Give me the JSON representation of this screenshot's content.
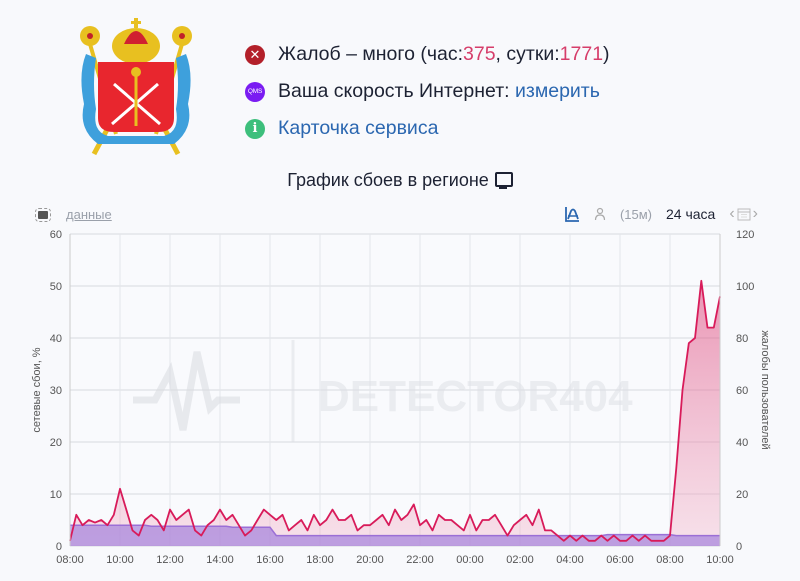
{
  "header": {
    "status_items": [
      {
        "icon": "error-x-icon",
        "text_before": "Жалоб – много (час: ",
        "hour_count": "375",
        "text_mid": ", сутки: ",
        "day_count": "1771",
        "text_after": ")"
      },
      {
        "icon": "qms-icon",
        "icon_label": "QMS",
        "text": "Ваша скорость Интернет: ",
        "link": "измерить"
      },
      {
        "icon": "info-icon",
        "icon_label": "i",
        "link": "Карточка сервиса"
      }
    ]
  },
  "chart_header": {
    "title": "График сбоев в регионе",
    "data_link": "данные",
    "interval": "(15м)",
    "range": "24 часа"
  },
  "watermark": "DETECTOR404",
  "colors": {
    "complaints": "#d81b5a",
    "network": "#9b6fd6",
    "accent": "#2b67b0",
    "error": "#b3202a",
    "qms": "#7a1cf2",
    "info": "#3dbf7c"
  },
  "chart_data": {
    "type": "area",
    "title": "График сбоев в регионе",
    "xlabel": "",
    "ylabel": "сетевые сбои, %",
    "ylabel_right": "жалобы пользователей",
    "ylim": [
      0,
      60
    ],
    "ylim_right": [
      0,
      120
    ],
    "yticks": [
      0,
      10,
      20,
      30,
      40,
      50,
      60
    ],
    "yticks_right": [
      0,
      20,
      40,
      60,
      80,
      100,
      120
    ],
    "xticks": [
      "08:00",
      "10:00",
      "12:00",
      "14:00",
      "16:00",
      "18:00",
      "20:00",
      "22:00",
      "00:00",
      "02:00",
      "04:00",
      "06:00",
      "08:00",
      "10:00"
    ],
    "grid": true,
    "legend": "none",
    "x_hours": [
      0,
      0.25,
      0.5,
      0.75,
      1,
      1.25,
      1.5,
      1.75,
      2,
      2.25,
      2.5,
      2.75,
      3,
      3.25,
      3.5,
      3.75,
      4,
      4.25,
      4.5,
      4.75,
      5,
      5.25,
      5.5,
      5.75,
      6,
      6.25,
      6.5,
      6.75,
      7,
      7.25,
      7.5,
      7.75,
      8,
      8.25,
      8.5,
      8.75,
      9,
      9.25,
      9.5,
      9.75,
      10,
      10.25,
      10.5,
      10.75,
      11,
      11.25,
      11.5,
      11.75,
      12,
      12.25,
      12.5,
      12.75,
      13,
      13.25,
      13.5,
      13.75,
      14,
      14.25,
      14.5,
      14.75,
      15,
      15.25,
      15.5,
      15.75,
      16,
      16.25,
      16.5,
      16.75,
      17,
      17.25,
      17.5,
      17.75,
      18,
      18.25,
      18.5,
      18.75,
      19,
      19.25,
      19.5,
      19.75,
      20,
      20.25,
      20.5,
      20.75,
      21,
      21.25,
      21.5,
      21.75,
      22,
      22.25,
      22.5,
      22.75,
      23,
      23.25,
      23.5,
      23.75,
      24,
      24.25,
      24.5,
      24.75,
      25,
      25.25,
      25.5,
      25.75,
      26
    ],
    "series": [
      {
        "name": "жалобы пользователей",
        "axis": "right",
        "values": [
          2,
          12,
          8,
          10,
          9,
          10,
          8,
          12,
          22,
          14,
          6,
          4,
          10,
          12,
          10,
          6,
          14,
          10,
          12,
          14,
          6,
          4,
          8,
          10,
          14,
          10,
          12,
          8,
          4,
          6,
          10,
          14,
          12,
          10,
          12,
          6,
          8,
          10,
          6,
          12,
          8,
          10,
          14,
          10,
          10,
          12,
          6,
          8,
          8,
          10,
          12,
          8,
          14,
          10,
          12,
          16,
          8,
          10,
          6,
          12,
          10,
          10,
          8,
          6,
          12,
          6,
          10,
          10,
          12,
          8,
          4,
          8,
          10,
          12,
          8,
          14,
          6,
          6,
          4,
          2,
          4,
          2,
          4,
          2,
          2,
          4,
          2,
          4,
          2,
          2,
          4,
          2,
          4,
          2,
          2,
          2,
          4,
          30,
          60,
          78,
          80,
          102,
          84,
          84,
          96,
          86,
          104,
          92
        ]
      },
      {
        "name": "сетевые сбои, %",
        "axis": "left",
        "values": [
          4,
          4,
          4,
          4,
          4,
          4,
          4,
          4,
          4,
          4,
          4,
          4,
          4,
          3.8,
          3.8,
          3.8,
          3.8,
          3.8,
          3.8,
          3.8,
          3.8,
          3.8,
          3.8,
          3.8,
          3.8,
          3.8,
          3.6,
          3.6,
          3.6,
          3.6,
          3.6,
          3.6,
          3.6,
          2,
          2,
          2,
          2,
          2,
          2,
          2,
          2,
          2,
          2,
          2,
          2,
          2,
          2,
          2,
          2,
          2,
          2,
          2,
          2,
          2,
          2,
          2,
          2,
          2,
          2,
          2,
          2,
          2,
          2,
          2,
          2,
          2,
          2,
          2,
          2,
          2,
          2,
          2,
          2,
          2,
          2,
          2,
          2,
          2,
          2,
          2,
          2,
          2,
          2,
          2,
          2,
          2,
          2.2,
          2.2,
          2.2,
          2.2,
          2.2,
          2.2,
          2.2,
          2.2,
          2.2,
          2.2,
          2.2,
          2,
          2,
          2,
          2,
          2,
          2,
          2,
          2,
          2,
          2,
          2
        ]
      }
    ]
  }
}
